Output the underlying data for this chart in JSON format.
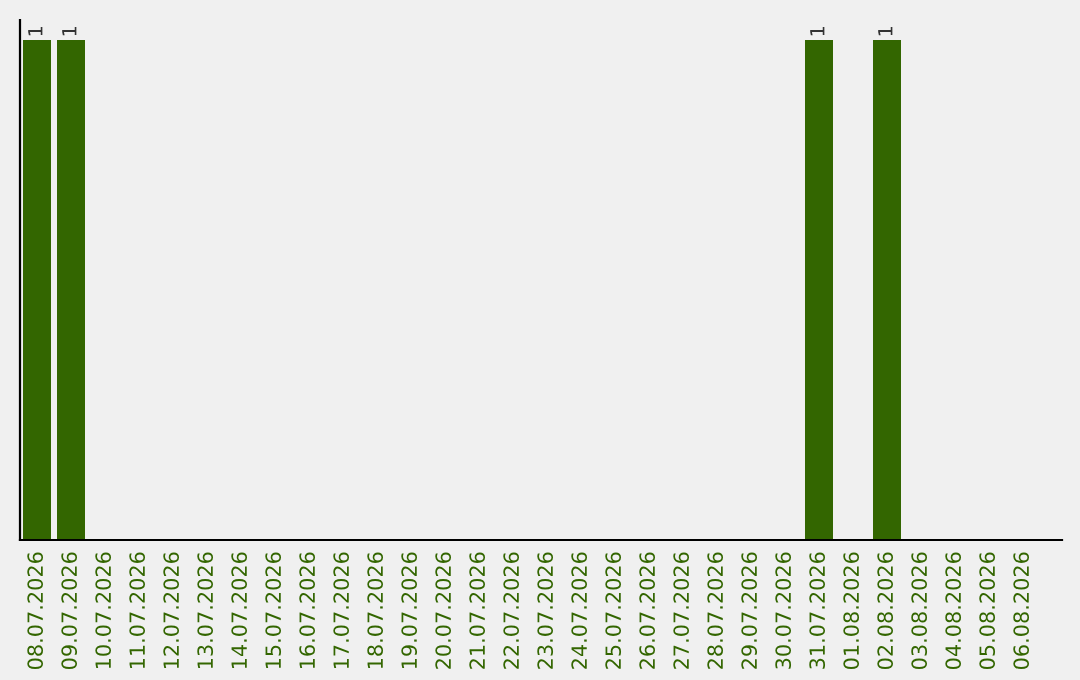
{
  "chart_data": {
    "type": "bar",
    "color": "#336600",
    "categories": [
      "08.07.2026",
      "09.07.2026",
      "10.07.2026",
      "11.07.2026",
      "12.07.2026",
      "13.07.2026",
      "14.07.2026",
      "15.07.2026",
      "16.07.2026",
      "17.07.2026",
      "18.07.2026",
      "19.07.2026",
      "20.07.2026",
      "21.07.2026",
      "22.07.2026",
      "23.07.2026",
      "24.07.2026",
      "25.07.2026",
      "26.07.2026",
      "27.07.2026",
      "28.07.2026",
      "29.07.2026",
      "30.07.2026",
      "31.07.2026",
      "01.08.2026",
      "02.08.2026",
      "03.08.2026",
      "04.08.2026",
      "05.08.2026",
      "06.08.2026"
    ],
    "values": [
      1,
      1,
      0,
      0,
      0,
      0,
      0,
      0,
      0,
      0,
      0,
      0,
      0,
      0,
      0,
      0,
      0,
      0,
      0,
      0,
      0,
      0,
      0,
      1,
      0,
      1,
      0,
      0,
      0,
      0
    ],
    "value_labels": [
      "1",
      "1",
      null,
      null,
      null,
      null,
      null,
      null,
      null,
      null,
      null,
      null,
      null,
      null,
      null,
      null,
      null,
      null,
      null,
      null,
      null,
      null,
      null,
      "1",
      null,
      "1",
      null,
      null,
      null,
      null
    ],
    "grid": false,
    "legend": false
  }
}
